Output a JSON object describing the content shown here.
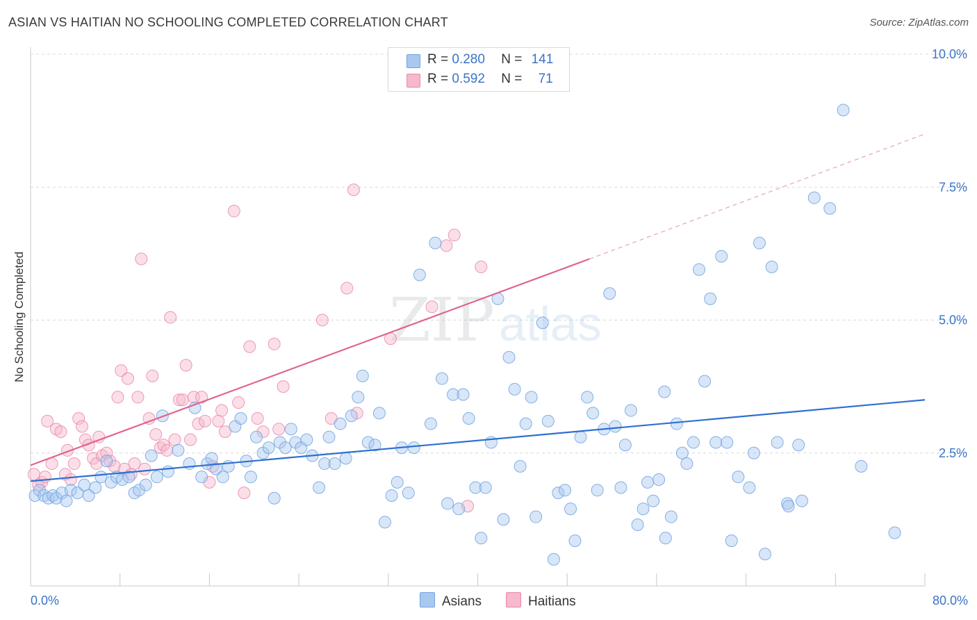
{
  "title": "ASIAN VS HAITIAN NO SCHOOLING COMPLETED CORRELATION CHART",
  "source": "Source: ZipAtlas.com",
  "watermark": {
    "zip": "ZIP",
    "atlas": "atlas"
  },
  "legend": {
    "rows": [
      {
        "r_label": "R =",
        "r_value": "0.280",
        "n_label": "N =",
        "n_value": "141",
        "color": "#a8c8f0"
      },
      {
        "r_label": "R =",
        "r_value": "0.592",
        "n_label": "N =",
        "n_value": "71",
        "color": "#f6b8cc"
      }
    ]
  },
  "bottom_legend": {
    "asians": "Asians",
    "haitians": "Haitians"
  },
  "chart_data": {
    "type": "scatter",
    "title": "ASIAN VS HAITIAN NO SCHOOLING COMPLETED CORRELATION CHART",
    "xlabel": "",
    "ylabel": "No Schooling Completed",
    "xlim": [
      0,
      80
    ],
    "ylim": [
      0,
      10
    ],
    "x_tick_labels": [
      "0.0%",
      "80.0%"
    ],
    "y_tick_labels": [
      "2.5%",
      "5.0%",
      "7.5%",
      "10.0%"
    ],
    "y_ticks": [
      2.5,
      5.0,
      7.5,
      10.0
    ],
    "grid": true,
    "legend_position": "top-center",
    "series": [
      {
        "name": "Asians",
        "color": "#6fa3e0",
        "fill": "#a8c8f0",
        "r": 0.28,
        "n": 141,
        "trend": {
          "x0": 0,
          "y0": 1.97,
          "x1": 80,
          "y1": 3.5
        },
        "points": [
          [
            0.4,
            1.7
          ],
          [
            0.8,
            1.8
          ],
          [
            1.2,
            1.7
          ],
          [
            1.6,
            1.65
          ],
          [
            2.0,
            1.7
          ],
          [
            2.3,
            1.65
          ],
          [
            2.8,
            1.75
          ],
          [
            3.2,
            1.6
          ],
          [
            3.6,
            1.8
          ],
          [
            4.2,
            1.75
          ],
          [
            4.8,
            1.9
          ],
          [
            5.2,
            1.7
          ],
          [
            5.8,
            1.85
          ],
          [
            6.3,
            2.05
          ],
          [
            6.8,
            2.35
          ],
          [
            7.2,
            1.95
          ],
          [
            7.7,
            2.05
          ],
          [
            8.2,
            2.0
          ],
          [
            8.8,
            2.05
          ],
          [
            9.3,
            1.75
          ],
          [
            9.7,
            1.8
          ],
          [
            10.3,
            1.9
          ],
          [
            10.8,
            2.45
          ],
          [
            11.3,
            2.05
          ],
          [
            11.8,
            3.2
          ],
          [
            12.3,
            2.15
          ],
          [
            13.2,
            2.55
          ],
          [
            14.2,
            2.3
          ],
          [
            14.7,
            3.35
          ],
          [
            15.3,
            2.05
          ],
          [
            15.8,
            2.3
          ],
          [
            16.2,
            2.4
          ],
          [
            16.6,
            2.2
          ],
          [
            17.2,
            2.05
          ],
          [
            17.7,
            2.25
          ],
          [
            18.3,
            3.0
          ],
          [
            18.8,
            3.15
          ],
          [
            19.3,
            2.35
          ],
          [
            19.7,
            2.05
          ],
          [
            20.2,
            2.8
          ],
          [
            20.8,
            2.5
          ],
          [
            21.3,
            2.6
          ],
          [
            21.8,
            1.65
          ],
          [
            22.3,
            2.7
          ],
          [
            22.8,
            2.6
          ],
          [
            23.3,
            2.95
          ],
          [
            23.7,
            2.7
          ],
          [
            24.2,
            2.6
          ],
          [
            24.7,
            2.75
          ],
          [
            25.2,
            2.45
          ],
          [
            25.8,
            1.85
          ],
          [
            26.3,
            2.3
          ],
          [
            26.7,
            2.8
          ],
          [
            27.2,
            2.3
          ],
          [
            27.7,
            3.05
          ],
          [
            28.2,
            2.4
          ],
          [
            28.7,
            3.2
          ],
          [
            29.3,
            3.55
          ],
          [
            29.7,
            3.95
          ],
          [
            30.2,
            2.7
          ],
          [
            30.8,
            2.65
          ],
          [
            31.2,
            3.25
          ],
          [
            31.7,
            1.2
          ],
          [
            32.3,
            1.7
          ],
          [
            32.8,
            1.95
          ],
          [
            33.2,
            2.6
          ],
          [
            33.8,
            1.75
          ],
          [
            34.3,
            2.6
          ],
          [
            34.8,
            5.85
          ],
          [
            35.8,
            3.05
          ],
          [
            36.2,
            6.45
          ],
          [
            36.8,
            3.9
          ],
          [
            37.3,
            1.55
          ],
          [
            37.8,
            3.6
          ],
          [
            38.3,
            1.45
          ],
          [
            38.7,
            3.6
          ],
          [
            39.2,
            3.15
          ],
          [
            39.8,
            1.85
          ],
          [
            40.3,
            0.9
          ],
          [
            40.7,
            1.85
          ],
          [
            41.2,
            2.7
          ],
          [
            41.8,
            5.4
          ],
          [
            42.3,
            1.25
          ],
          [
            42.8,
            4.3
          ],
          [
            43.3,
            3.7
          ],
          [
            43.8,
            2.25
          ],
          [
            44.3,
            3.05
          ],
          [
            44.8,
            3.55
          ],
          [
            45.2,
            1.3
          ],
          [
            45.8,
            4.95
          ],
          [
            46.3,
            3.1
          ],
          [
            46.8,
            0.5
          ],
          [
            47.2,
            1.75
          ],
          [
            47.8,
            1.8
          ],
          [
            48.3,
            1.45
          ],
          [
            48.7,
            0.85
          ],
          [
            49.2,
            2.8
          ],
          [
            49.8,
            3.55
          ],
          [
            50.3,
            3.25
          ],
          [
            50.7,
            1.8
          ],
          [
            51.3,
            2.95
          ],
          [
            51.8,
            5.5
          ],
          [
            52.3,
            3.0
          ],
          [
            52.8,
            1.85
          ],
          [
            53.2,
            2.65
          ],
          [
            53.7,
            3.3
          ],
          [
            54.3,
            1.15
          ],
          [
            54.8,
            1.45
          ],
          [
            55.2,
            1.95
          ],
          [
            55.7,
            1.6
          ],
          [
            56.2,
            2.0
          ],
          [
            56.7,
            3.65
          ],
          [
            56.8,
            0.9
          ],
          [
            57.3,
            1.3
          ],
          [
            57.8,
            3.05
          ],
          [
            58.3,
            2.5
          ],
          [
            58.7,
            2.3
          ],
          [
            59.3,
            2.7
          ],
          [
            59.8,
            5.95
          ],
          [
            60.3,
            3.85
          ],
          [
            60.8,
            5.4
          ],
          [
            61.3,
            2.7
          ],
          [
            61.8,
            6.2
          ],
          [
            62.3,
            2.7
          ],
          [
            62.7,
            0.85
          ],
          [
            63.3,
            2.05
          ],
          [
            64.3,
            1.85
          ],
          [
            64.7,
            2.5
          ],
          [
            65.2,
            6.45
          ],
          [
            65.7,
            0.6
          ],
          [
            66.3,
            6.0
          ],
          [
            66.8,
            2.7
          ],
          [
            67.7,
            1.55
          ],
          [
            67.8,
            1.5
          ],
          [
            68.7,
            2.65
          ],
          [
            69.0,
            1.6
          ],
          [
            70.1,
            7.3
          ],
          [
            71.5,
            7.1
          ],
          [
            72.7,
            8.95
          ],
          [
            74.3,
            2.25
          ],
          [
            77.3,
            1.0
          ]
        ]
      },
      {
        "name": "Haitians",
        "color": "#e88aa8",
        "fill": "#f6b8cc",
        "r": 0.592,
        "n": 71,
        "trend": {
          "x0": 0,
          "y0": 2.27,
          "x1": 50,
          "y1": 6.15,
          "dash_to": {
            "x": 80,
            "y": 8.5
          }
        },
        "points": [
          [
            0.3,
            2.1
          ],
          [
            0.7,
            1.9
          ],
          [
            1.0,
            1.95
          ],
          [
            1.3,
            2.05
          ],
          [
            1.5,
            3.1
          ],
          [
            1.9,
            2.3
          ],
          [
            2.3,
            2.95
          ],
          [
            2.7,
            2.9
          ],
          [
            3.1,
            2.1
          ],
          [
            3.3,
            2.55
          ],
          [
            3.6,
            2.0
          ],
          [
            3.9,
            2.3
          ],
          [
            4.3,
            3.15
          ],
          [
            4.6,
            3.0
          ],
          [
            4.9,
            2.75
          ],
          [
            5.2,
            2.65
          ],
          [
            5.6,
            2.4
          ],
          [
            5.9,
            2.3
          ],
          [
            6.1,
            2.8
          ],
          [
            6.4,
            2.45
          ],
          [
            6.8,
            2.5
          ],
          [
            7.1,
            2.35
          ],
          [
            7.5,
            2.25
          ],
          [
            7.8,
            3.55
          ],
          [
            8.1,
            4.05
          ],
          [
            8.4,
            2.2
          ],
          [
            8.7,
            3.9
          ],
          [
            9.0,
            2.1
          ],
          [
            9.3,
            2.3
          ],
          [
            9.6,
            3.55
          ],
          [
            9.9,
            6.15
          ],
          [
            10.2,
            2.2
          ],
          [
            10.6,
            3.15
          ],
          [
            10.9,
            3.95
          ],
          [
            11.2,
            2.85
          ],
          [
            11.6,
            2.6
          ],
          [
            11.9,
            2.65
          ],
          [
            12.2,
            2.55
          ],
          [
            12.5,
            5.05
          ],
          [
            12.9,
            2.75
          ],
          [
            13.3,
            3.5
          ],
          [
            13.6,
            3.5
          ],
          [
            13.9,
            4.15
          ],
          [
            14.3,
            2.75
          ],
          [
            14.6,
            3.55
          ],
          [
            15.0,
            3.05
          ],
          [
            15.3,
            3.55
          ],
          [
            15.6,
            3.1
          ],
          [
            16.0,
            1.95
          ],
          [
            16.3,
            2.25
          ],
          [
            16.8,
            3.1
          ],
          [
            17.1,
            3.3
          ],
          [
            17.4,
            2.9
          ],
          [
            18.2,
            7.05
          ],
          [
            18.6,
            3.45
          ],
          [
            19.1,
            1.75
          ],
          [
            19.6,
            4.5
          ],
          [
            20.3,
            3.15
          ],
          [
            20.8,
            2.9
          ],
          [
            21.8,
            4.55
          ],
          [
            22.2,
            2.95
          ],
          [
            22.6,
            3.75
          ],
          [
            26.1,
            5.0
          ],
          [
            26.9,
            3.15
          ],
          [
            28.3,
            5.6
          ],
          [
            28.9,
            7.45
          ],
          [
            29.2,
            3.25
          ],
          [
            32.2,
            4.65
          ],
          [
            35.9,
            5.25
          ],
          [
            37.2,
            6.4
          ],
          [
            37.9,
            6.6
          ],
          [
            39.1,
            1.5
          ],
          [
            40.3,
            6.0
          ]
        ]
      }
    ]
  }
}
